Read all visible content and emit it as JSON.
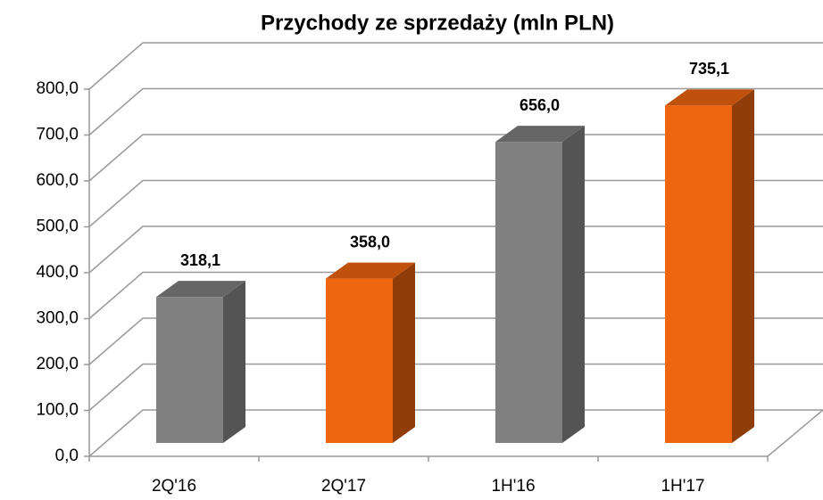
{
  "chart_data": {
    "type": "bar3d",
    "title": "Przychody ze sprzedaży (mln PLN)",
    "categories": [
      "2Q'16",
      "2Q'17",
      "1H'16",
      "1H'17"
    ],
    "values": [
      318.1,
      358.0,
      656.0,
      735.1
    ],
    "value_labels": [
      "318,1",
      "358,0",
      "656,0",
      "735,1"
    ],
    "colors": [
      "#808080",
      "#f06510",
      "#808080",
      "#f06510"
    ],
    "ylim": [
      0,
      800
    ],
    "yticks": [
      {
        "value": 0,
        "label": "0,0"
      },
      {
        "value": 100,
        "label": "100,0"
      },
      {
        "value": 200,
        "label": "200,0"
      },
      {
        "value": 300,
        "label": "300,0"
      },
      {
        "value": 400,
        "label": "400,0"
      },
      {
        "value": 500,
        "label": "500,0"
      },
      {
        "value": 600,
        "label": "600,0"
      },
      {
        "value": 700,
        "label": "700,0"
      },
      {
        "value": 800,
        "label": "800,0"
      }
    ],
    "grid": true
  }
}
